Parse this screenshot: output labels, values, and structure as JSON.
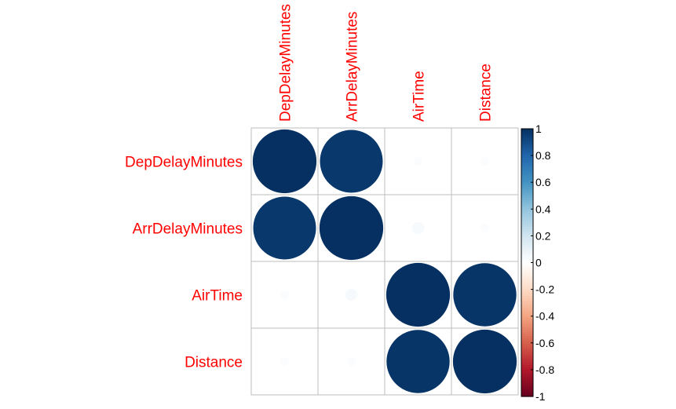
{
  "chart_data": {
    "type": "heatmap",
    "variables": [
      "DepDelayMinutes",
      "ArrDelayMinutes",
      "AirTime",
      "Distance"
    ],
    "matrix": [
      [
        1.0,
        0.97,
        0.02,
        0.02
      ],
      [
        0.97,
        1.0,
        0.04,
        0.02
      ],
      [
        0.02,
        0.04,
        1.0,
        0.98
      ],
      [
        0.02,
        0.02,
        0.98,
        1.0
      ]
    ],
    "colorbar": {
      "range": [
        -1,
        1
      ],
      "tick_labels": [
        "1",
        "0.8",
        "0.6",
        "0.4",
        "0.2",
        "0",
        "-0.2",
        "-0.4",
        "-0.6",
        "-0.8",
        "-1"
      ],
      "colors": [
        "#67001f",
        "#b2182b",
        "#d6604d",
        "#f4a582",
        "#fddbc7",
        "#ffffff",
        "#d1e5f0",
        "#92c5de",
        "#4393c3",
        "#2166ac",
        "#053061"
      ]
    },
    "grid": true,
    "legend": "right"
  }
}
